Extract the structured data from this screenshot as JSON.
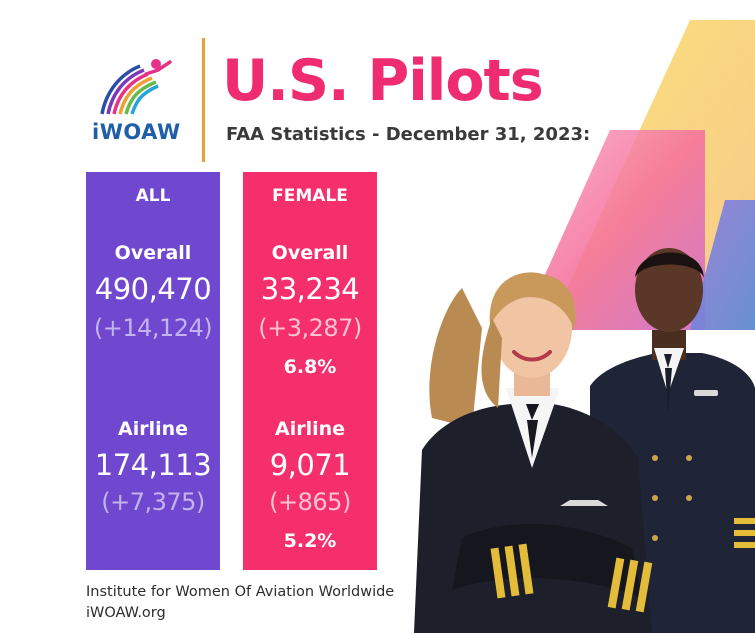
{
  "header": {
    "logo_text": "iWOAW",
    "title": "U.S. Pilots",
    "subtitle": "FAA Statistics - December 31, 2023:"
  },
  "panels": {
    "all": {
      "header": "ALL",
      "overall_label": "Overall",
      "overall_value": "490,470",
      "overall_change": "(+14,124)",
      "airline_label": "Airline",
      "airline_value": "174,113",
      "airline_change": "(+7,375)"
    },
    "female": {
      "header": "FEMALE",
      "overall_label": "Overall",
      "overall_value": "33,234",
      "overall_change": "(+3,287)",
      "overall_pct": "6.8%",
      "airline_label": "Airline",
      "airline_value": "9,071",
      "airline_change": "(+865)",
      "airline_pct": "5.2%"
    }
  },
  "footer": {
    "line1": "Institute for Women Of Aviation Worldwide",
    "line2": "iWOAW.org"
  },
  "colors": {
    "title_pink": "#ee2c6f",
    "all_purple": "#7047cf",
    "female_pink": "#f52e6c",
    "accent_yellow": "#f7dd7a",
    "logo_blue": "#1f5fa8"
  },
  "icons": [
    "iwoaw-logo-icon",
    "pilots-photo"
  ]
}
